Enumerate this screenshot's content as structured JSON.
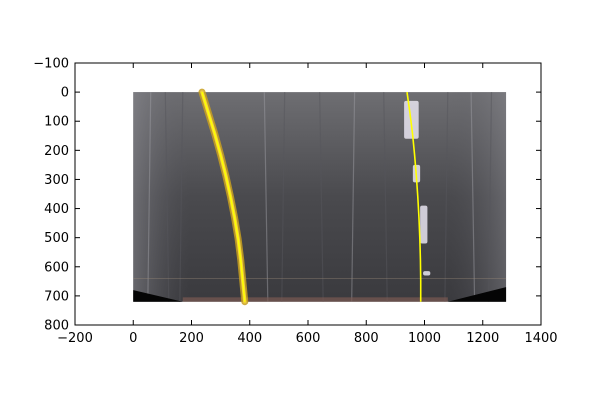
{
  "chart_data": {
    "type": "line",
    "title": "",
    "xlabel": "",
    "ylabel": "",
    "xlim": [
      -200,
      1400
    ],
    "ylim": [
      800,
      -100
    ],
    "y_axis_inverted": true,
    "grid": false,
    "x_ticks": [
      -200,
      0,
      200,
      400,
      600,
      800,
      1000,
      1200,
      1400
    ],
    "y_ticks": [
      -100,
      0,
      100,
      200,
      300,
      400,
      500,
      600,
      700,
      800
    ],
    "image": {
      "description_kind": "warped-road-birdseye",
      "extent_x": [
        0,
        1280
      ],
      "extent_y": [
        0,
        720
      ]
    },
    "series": [
      {
        "color": "#ffff00",
        "x": [
          236,
          258,
          280,
          300,
          318,
          334,
          348,
          360,
          369,
          376,
          381,
          383
        ],
        "y": [
          0,
          72,
          144,
          216,
          288,
          360,
          432,
          504,
          576,
          648,
          700,
          720
        ]
      },
      {
        "color": "#ffff00",
        "x": [
          940,
          950,
          959,
          966,
          972,
          977,
          981,
          984,
          986,
          987,
          987
        ],
        "y": [
          0,
          72,
          144,
          216,
          288,
          360,
          432,
          504,
          576,
          648,
          720
        ]
      }
    ]
  }
}
